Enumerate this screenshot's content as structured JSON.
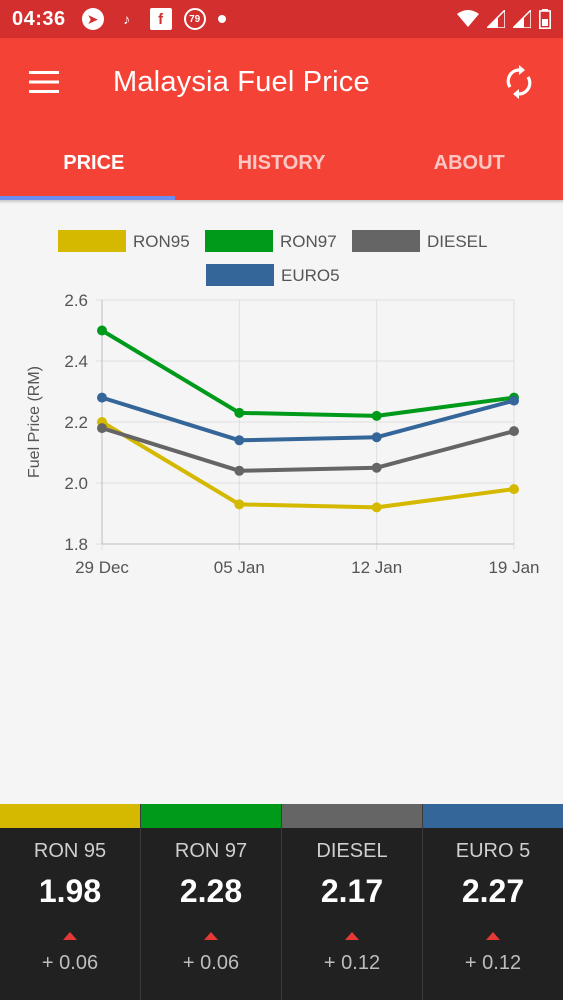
{
  "status_bar": {
    "time": "04:36",
    "icons": [
      "telegram-icon",
      "tiktok-icon",
      "facebook-icon",
      "notification-79-icon",
      "dot-icon"
    ],
    "notification_count": "79",
    "right_icons": [
      "wifi-icon",
      "signal-icon",
      "signal-icon-2",
      "battery-icon"
    ]
  },
  "app_bar": {
    "title": "Malaysia Fuel Price",
    "menu_icon": "menu-icon",
    "refresh_icon": "refresh-icon",
    "color": "#f44336"
  },
  "tabs": [
    {
      "label": "PRICE",
      "active": true
    },
    {
      "label": "HISTORY",
      "active": false
    },
    {
      "label": "ABOUT",
      "active": false
    }
  ],
  "chart_data": {
    "type": "line",
    "categories": [
      "29 Dec",
      "05 Jan",
      "12 Jan",
      "19 Jan"
    ],
    "ylabel": "Fuel Price (RM)",
    "xlabel": "",
    "ylim": [
      1.8,
      2.6
    ],
    "yticks": [
      "1.8",
      "2.0",
      "2.2",
      "2.4",
      "2.6"
    ],
    "grid": true,
    "legend_position": "top",
    "series": [
      {
        "name": "RON95",
        "color": "#d4b900",
        "values": [
          2.2,
          1.93,
          1.92,
          1.98
        ]
      },
      {
        "name": "RON97",
        "color": "#009a1a",
        "values": [
          2.5,
          2.23,
          2.22,
          2.28
        ]
      },
      {
        "name": "DIESEL",
        "color": "#656565",
        "values": [
          2.18,
          2.04,
          2.05,
          2.17
        ]
      },
      {
        "name": "EURO5",
        "color": "#346699",
        "values": [
          2.28,
          2.14,
          2.15,
          2.27
        ]
      }
    ]
  },
  "prices": [
    {
      "name": "RON 95",
      "price": "1.98",
      "change": "+ 0.06",
      "color": "#d4b900"
    },
    {
      "name": "RON 97",
      "price": "2.28",
      "change": "+ 0.06",
      "color": "#009a1a"
    },
    {
      "name": "DIESEL",
      "price": "2.17",
      "change": "+ 0.12",
      "color": "#656565"
    },
    {
      "name": "EURO 5",
      "price": "2.27",
      "change": "+ 0.12",
      "color": "#346699"
    }
  ]
}
